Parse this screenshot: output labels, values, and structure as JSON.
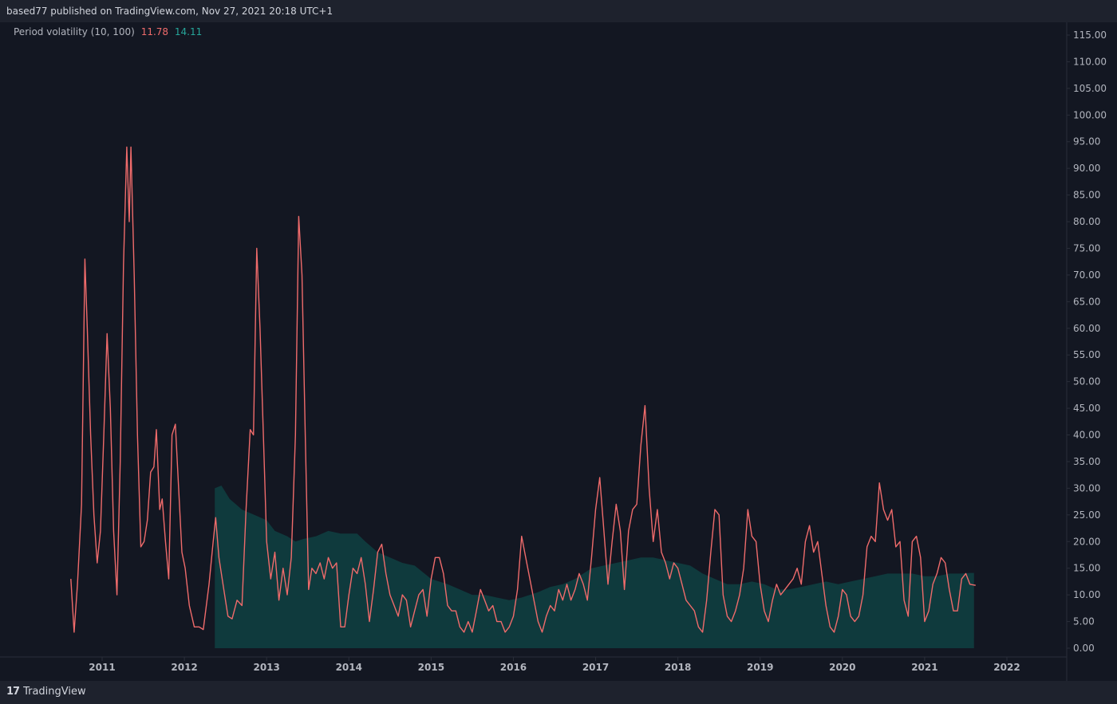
{
  "header": {
    "attribution": "based77 published on TradingView.com, Nov 27, 2021 20:18 UTC+1"
  },
  "legend": {
    "label": "Period volatility (10, 100)",
    "value_short": "11.78",
    "value_long": "14.11"
  },
  "footer": {
    "brand": "TradingView",
    "logo_text": "17"
  },
  "colors": {
    "background": "#131722",
    "frame": "#1e222d",
    "short_line": "#ef6b6b",
    "long_area": "#0f3a3d",
    "axis_text": "#b2b5be"
  },
  "chart_data": {
    "type": "area",
    "title": "",
    "xlabel": "",
    "ylabel": "",
    "ylim": [
      0,
      115
    ],
    "yticks": [
      "0.00",
      "5.00",
      "10.00",
      "15.00",
      "20.00",
      "25.00",
      "30.00",
      "35.00",
      "40.00",
      "45.00",
      "50.00",
      "55.00",
      "60.00",
      "65.00",
      "70.00",
      "75.00",
      "80.00",
      "85.00",
      "90.00",
      "95.00",
      "100.00",
      "105.00",
      "110.00",
      "115.00"
    ],
    "xticks": [
      "2011",
      "2012",
      "2013",
      "2014",
      "2015",
      "2016",
      "2017",
      "2018",
      "2019",
      "2020",
      "2021",
      "2022"
    ],
    "xlim": [
      2010.85,
      2022.08
    ],
    "grid": false,
    "series": [
      {
        "name": "",
        "kind": "line",
        "color": "#ef6b6b",
        "points": [
          [
            2010.62,
            13
          ],
          [
            2010.66,
            3
          ],
          [
            2010.7,
            12
          ],
          [
            2010.75,
            27
          ],
          [
            2010.79,
            73
          ],
          [
            2010.82,
            60
          ],
          [
            2010.86,
            40
          ],
          [
            2010.9,
            25
          ],
          [
            2010.94,
            16
          ],
          [
            2010.98,
            22
          ],
          [
            2011.02,
            40
          ],
          [
            2011.06,
            59
          ],
          [
            2011.1,
            45
          ],
          [
            2011.14,
            22
          ],
          [
            2011.18,
            10
          ],
          [
            2011.22,
            35
          ],
          [
            2011.26,
            72
          ],
          [
            2011.3,
            94
          ],
          [
            2011.33,
            80
          ],
          [
            2011.35,
            94
          ],
          [
            2011.39,
            70
          ],
          [
            2011.43,
            40
          ],
          [
            2011.47,
            19
          ],
          [
            2011.51,
            20
          ],
          [
            2011.55,
            24
          ],
          [
            2011.59,
            33
          ],
          [
            2011.63,
            34
          ],
          [
            2011.66,
            41
          ],
          [
            2011.7,
            26
          ],
          [
            2011.73,
            28
          ],
          [
            2011.77,
            20
          ],
          [
            2011.81,
            13
          ],
          [
            2011.85,
            40
          ],
          [
            2011.89,
            42
          ],
          [
            2011.93,
            30
          ],
          [
            2011.97,
            18
          ],
          [
            2012.01,
            15
          ],
          [
            2012.06,
            8
          ],
          [
            2012.12,
            4
          ],
          [
            2012.18,
            4
          ],
          [
            2012.23,
            3.5
          ],
          [
            2012.3,
            12
          ],
          [
            2012.35,
            20
          ],
          [
            2012.38,
            24.5
          ],
          [
            2012.42,
            17
          ],
          [
            2012.47,
            12
          ],
          [
            2012.53,
            6
          ],
          [
            2012.58,
            5.5
          ],
          [
            2012.64,
            9
          ],
          [
            2012.7,
            8
          ],
          [
            2012.75,
            26
          ],
          [
            2012.8,
            41
          ],
          [
            2012.84,
            40
          ],
          [
            2012.88,
            75
          ],
          [
            2012.92,
            60
          ],
          [
            2012.96,
            40
          ],
          [
            2013.0,
            20
          ],
          [
            2013.05,
            13
          ],
          [
            2013.1,
            18
          ],
          [
            2013.15,
            9
          ],
          [
            2013.2,
            15
          ],
          [
            2013.25,
            10
          ],
          [
            2013.3,
            17
          ],
          [
            2013.35,
            40
          ],
          [
            2013.39,
            81
          ],
          [
            2013.43,
            70
          ],
          [
            2013.47,
            40
          ],
          [
            2013.51,
            11
          ],
          [
            2013.55,
            15
          ],
          [
            2013.6,
            14
          ],
          [
            2013.65,
            16
          ],
          [
            2013.7,
            13
          ],
          [
            2013.75,
            17
          ],
          [
            2013.8,
            15
          ],
          [
            2013.85,
            16
          ],
          [
            2013.9,
            4
          ],
          [
            2013.95,
            4
          ],
          [
            2014.0,
            10
          ],
          [
            2014.05,
            15
          ],
          [
            2014.1,
            14
          ],
          [
            2014.15,
            17
          ],
          [
            2014.2,
            12
          ],
          [
            2014.25,
            5
          ],
          [
            2014.3,
            11
          ],
          [
            2014.35,
            18
          ],
          [
            2014.4,
            19.5
          ],
          [
            2014.45,
            14
          ],
          [
            2014.5,
            10
          ],
          [
            2014.55,
            8
          ],
          [
            2014.6,
            6
          ],
          [
            2014.65,
            10
          ],
          [
            2014.7,
            9
          ],
          [
            2014.75,
            4
          ],
          [
            2014.8,
            7
          ],
          [
            2014.85,
            10
          ],
          [
            2014.9,
            11
          ],
          [
            2014.95,
            6
          ],
          [
            2015.0,
            13
          ],
          [
            2015.05,
            17
          ],
          [
            2015.1,
            17
          ],
          [
            2015.15,
            14
          ],
          [
            2015.2,
            8
          ],
          [
            2015.25,
            7
          ],
          [
            2015.3,
            7
          ],
          [
            2015.35,
            4
          ],
          [
            2015.4,
            3
          ],
          [
            2015.45,
            5
          ],
          [
            2015.5,
            3
          ],
          [
            2015.55,
            7
          ],
          [
            2015.6,
            11
          ],
          [
            2015.65,
            9
          ],
          [
            2015.7,
            7
          ],
          [
            2015.75,
            8
          ],
          [
            2015.8,
            5
          ],
          [
            2015.85,
            5
          ],
          [
            2015.9,
            3
          ],
          [
            2015.95,
            4
          ],
          [
            2016.0,
            6
          ],
          [
            2016.05,
            11
          ],
          [
            2016.1,
            21
          ],
          [
            2016.15,
            17
          ],
          [
            2016.2,
            13
          ],
          [
            2016.25,
            9
          ],
          [
            2016.3,
            5
          ],
          [
            2016.35,
            3
          ],
          [
            2016.4,
            6
          ],
          [
            2016.45,
            8
          ],
          [
            2016.5,
            7
          ],
          [
            2016.55,
            11
          ],
          [
            2016.6,
            9
          ],
          [
            2016.65,
            12
          ],
          [
            2016.7,
            9
          ],
          [
            2016.75,
            11
          ],
          [
            2016.8,
            14
          ],
          [
            2016.85,
            12
          ],
          [
            2016.9,
            9
          ],
          [
            2016.95,
            17
          ],
          [
            2017.0,
            26
          ],
          [
            2017.05,
            32
          ],
          [
            2017.1,
            22
          ],
          [
            2017.15,
            12
          ],
          [
            2017.2,
            20
          ],
          [
            2017.25,
            27
          ],
          [
            2017.3,
            22
          ],
          [
            2017.35,
            11
          ],
          [
            2017.4,
            22
          ],
          [
            2017.45,
            26
          ],
          [
            2017.5,
            27
          ],
          [
            2017.55,
            38
          ],
          [
            2017.6,
            45.5
          ],
          [
            2017.65,
            30
          ],
          [
            2017.7,
            20
          ],
          [
            2017.75,
            26
          ],
          [
            2017.8,
            18
          ],
          [
            2017.85,
            16
          ],
          [
            2017.9,
            13
          ],
          [
            2017.95,
            16
          ],
          [
            2018.0,
            15
          ],
          [
            2018.05,
            12
          ],
          [
            2018.1,
            9
          ],
          [
            2018.15,
            8
          ],
          [
            2018.2,
            7
          ],
          [
            2018.25,
            4
          ],
          [
            2018.3,
            3
          ],
          [
            2018.35,
            9
          ],
          [
            2018.4,
            18
          ],
          [
            2018.45,
            26
          ],
          [
            2018.5,
            25
          ],
          [
            2018.55,
            10
          ],
          [
            2018.6,
            6
          ],
          [
            2018.65,
            5
          ],
          [
            2018.7,
            7
          ],
          [
            2018.75,
            10
          ],
          [
            2018.8,
            15
          ],
          [
            2018.85,
            26
          ],
          [
            2018.9,
            21
          ],
          [
            2018.95,
            20
          ],
          [
            2019.0,
            12
          ],
          [
            2019.05,
            7
          ],
          [
            2019.1,
            5
          ],
          [
            2019.15,
            9
          ],
          [
            2019.2,
            12
          ],
          [
            2019.25,
            10
          ],
          [
            2019.3,
            11
          ],
          [
            2019.35,
            12
          ],
          [
            2019.4,
            13
          ],
          [
            2019.45,
            15
          ],
          [
            2019.5,
            12
          ],
          [
            2019.55,
            20
          ],
          [
            2019.6,
            23
          ],
          [
            2019.65,
            18
          ],
          [
            2019.7,
            20
          ],
          [
            2019.75,
            14
          ],
          [
            2019.8,
            8
          ],
          [
            2019.85,
            4
          ],
          [
            2019.9,
            3
          ],
          [
            2019.95,
            6
          ],
          [
            2020.0,
            11
          ],
          [
            2020.05,
            10
          ],
          [
            2020.1,
            6
          ],
          [
            2020.15,
            5
          ],
          [
            2020.2,
            6
          ],
          [
            2020.25,
            10
          ],
          [
            2020.3,
            19
          ],
          [
            2020.35,
            21
          ],
          [
            2020.4,
            20
          ],
          [
            2020.45,
            31
          ],
          [
            2020.5,
            26
          ],
          [
            2020.55,
            24
          ],
          [
            2020.6,
            26
          ],
          [
            2020.65,
            19
          ],
          [
            2020.7,
            20
          ],
          [
            2020.75,
            9
          ],
          [
            2020.8,
            6
          ],
          [
            2020.85,
            20
          ],
          [
            2020.9,
            21
          ],
          [
            2020.95,
            17
          ],
          [
            2021.0,
            5
          ],
          [
            2021.05,
            7
          ],
          [
            2021.1,
            12
          ],
          [
            2021.15,
            14
          ],
          [
            2021.2,
            17
          ],
          [
            2021.25,
            16
          ],
          [
            2021.3,
            11
          ],
          [
            2021.35,
            7
          ],
          [
            2021.4,
            7
          ],
          [
            2021.45,
            13
          ],
          [
            2021.5,
            14
          ],
          [
            2021.55,
            12
          ],
          [
            2021.62,
            11.78
          ]
        ]
      },
      {
        "name": "",
        "kind": "area",
        "color": "#0f3a3d",
        "points": [
          [
            2012.37,
            30
          ],
          [
            2012.45,
            30.5
          ],
          [
            2012.55,
            28
          ],
          [
            2012.7,
            26
          ],
          [
            2012.85,
            25
          ],
          [
            2013.0,
            24
          ],
          [
            2013.1,
            22
          ],
          [
            2013.25,
            21
          ],
          [
            2013.35,
            20
          ],
          [
            2013.45,
            20.5
          ],
          [
            2013.6,
            21
          ],
          [
            2013.75,
            22
          ],
          [
            2013.9,
            21.5
          ],
          [
            2014.0,
            21.5
          ],
          [
            2014.1,
            21.5
          ],
          [
            2014.2,
            20
          ],
          [
            2014.35,
            18
          ],
          [
            2014.5,
            17
          ],
          [
            2014.65,
            16
          ],
          [
            2014.8,
            15.5
          ],
          [
            2015.0,
            13
          ],
          [
            2015.2,
            12
          ],
          [
            2015.35,
            11
          ],
          [
            2015.5,
            10
          ],
          [
            2015.65,
            10
          ],
          [
            2015.8,
            9.5
          ],
          [
            2015.95,
            9
          ],
          [
            2016.1,
            9.5
          ],
          [
            2016.3,
            10.5
          ],
          [
            2016.45,
            11.5
          ],
          [
            2016.6,
            12
          ],
          [
            2016.75,
            13
          ],
          [
            2016.85,
            14
          ],
          [
            2016.95,
            15
          ],
          [
            2017.1,
            15.5
          ],
          [
            2017.25,
            16
          ],
          [
            2017.4,
            16.5
          ],
          [
            2017.55,
            17
          ],
          [
            2017.7,
            17
          ],
          [
            2017.85,
            16.5
          ],
          [
            2018.0,
            16
          ],
          [
            2018.15,
            15.5
          ],
          [
            2018.3,
            14
          ],
          [
            2018.45,
            13
          ],
          [
            2018.6,
            12
          ],
          [
            2018.75,
            12
          ],
          [
            2018.9,
            12.5
          ],
          [
            2019.05,
            12
          ],
          [
            2019.2,
            11
          ],
          [
            2019.35,
            11
          ],
          [
            2019.5,
            11.5
          ],
          [
            2019.65,
            12
          ],
          [
            2019.8,
            12.5
          ],
          [
            2019.95,
            12
          ],
          [
            2020.1,
            12.5
          ],
          [
            2020.25,
            13
          ],
          [
            2020.4,
            13.5
          ],
          [
            2020.55,
            14
          ],
          [
            2020.7,
            14
          ],
          [
            2020.85,
            14
          ],
          [
            2021.0,
            13.5
          ],
          [
            2021.15,
            13.5
          ],
          [
            2021.3,
            14
          ],
          [
            2021.45,
            14
          ],
          [
            2021.55,
            14.11
          ],
          [
            2021.6,
            14.11
          ]
        ]
      }
    ]
  }
}
